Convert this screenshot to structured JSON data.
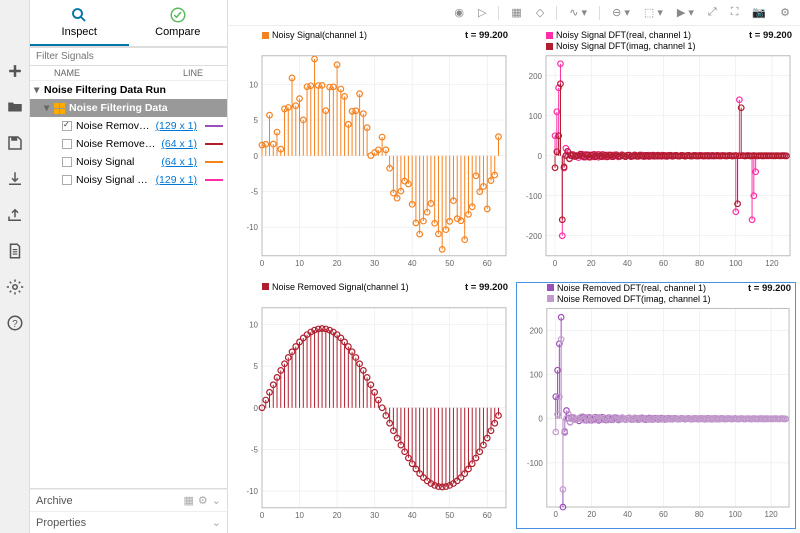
{
  "tabs": {
    "inspect": "Inspect",
    "compare": "Compare"
  },
  "filter_placeholder": "Filter Signals",
  "headers": {
    "name": "NAME",
    "line": "LINE"
  },
  "tree": {
    "run": "Noise Filtering Data Run",
    "dataset": "Noise Filtering Data",
    "items": [
      {
        "name": "Noise Removed D",
        "dims": "129 x 1",
        "color": "#9b4fb8",
        "checked": true
      },
      {
        "name": "Noise Removed Si",
        "dims": "64 x 1",
        "color": "#b01e2e",
        "checked": false
      },
      {
        "name": "Noisy Signal",
        "dims": "64 x 1",
        "color": "#f58220",
        "checked": false
      },
      {
        "name": "Noisy Signal DFT",
        "dims": "129 x 1",
        "color": "#ff2ea6",
        "checked": false
      }
    ]
  },
  "sections": {
    "archive": "Archive",
    "properties": "Properties"
  },
  "time_label": "t = 99.200",
  "plots": [
    {
      "legend": [
        {
          "label": "Noisy Signal(channel 1)",
          "color": "#f58220"
        }
      ],
      "xlim": [
        0,
        65
      ],
      "ylim": [
        -14,
        14
      ],
      "xticks": [
        0,
        10,
        20,
        30,
        40,
        50,
        60
      ],
      "yticks": [
        -10,
        -5,
        0,
        5,
        10
      ]
    },
    {
      "legend": [
        {
          "label": "Noisy Signal DFT(real, channel 1)",
          "color": "#ff2ea6"
        },
        {
          "label": "Noisy Signal DFT(imag, channel 1)",
          "color": "#b01e2e"
        }
      ],
      "xlim": [
        -5,
        130
      ],
      "ylim": [
        -250,
        250
      ],
      "xticks": [
        0,
        20,
        40,
        60,
        80,
        100,
        120
      ],
      "yticks": [
        -200,
        -100,
        0,
        100,
        200
      ]
    },
    {
      "legend": [
        {
          "label": "Noise Removed Signal(channel 1)",
          "color": "#b01e2e"
        }
      ],
      "xlim": [
        0,
        65
      ],
      "ylim": [
        -12,
        12
      ],
      "xticks": [
        0,
        10,
        20,
        30,
        40,
        50,
        60
      ],
      "yticks": [
        -10,
        -5,
        0,
        5,
        10
      ]
    },
    {
      "legend": [
        {
          "label": "Noise Removed DFT(real, channel 1)",
          "color": "#9b4fb8"
        },
        {
          "label": "Noise Removed DFT(imag, channel 1)",
          "color": "#c29acb"
        }
      ],
      "xlim": [
        -5,
        130
      ],
      "ylim": [
        -200,
        250
      ],
      "xticks": [
        0,
        20,
        40,
        60,
        80,
        100,
        120
      ],
      "yticks": [
        -100,
        0,
        100,
        200
      ],
      "selected": true
    }
  ],
  "colors": {
    "inspect_icon": "#0076a8",
    "compare_icon": "#5cb85c"
  }
}
